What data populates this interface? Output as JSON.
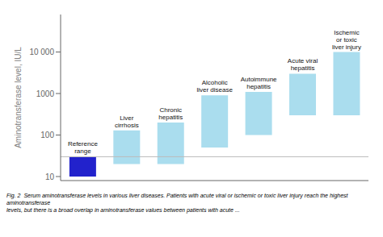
{
  "chart_data": {
    "type": "bar",
    "categories": [
      "Reference\nrange",
      "Liver\ncirrhosis",
      "Chronic\nhepatitis",
      "Alcoholic\nliver disease",
      "Autoimmune\nhepatitis",
      "Acute viral\nhepatitis",
      "Ischemic\nor toxic\nliver injury"
    ],
    "bottoms": [
      10,
      20,
      20,
      50,
      100,
      300,
      300
    ],
    "tops": [
      30,
      130,
      200,
      900,
      1100,
      3000,
      10000
    ],
    "colors": [
      "#2222cc",
      "#aaddee",
      "#aaddee",
      "#aaddee",
      "#aaddee",
      "#aaddee",
      "#aaddee"
    ],
    "ylabel": "Aminotransferase level, IU/L",
    "log": "y",
    "ylim": [
      8,
      80000
    ],
    "yticks": [
      10,
      100,
      1000,
      {
        "value": 10000,
        "label": "10 000"
      }
    ],
    "reference_line": {
      "value": 30,
      "color": "#bbbbbb"
    },
    "tick_labels": "y",
    "grid": false,
    "caption": "Fig. 2  Serum aminotransferase levels in various liver diseases. Patients with acute viral or ischemic or toxic liver injury reach the highest aminotransferase\nlevels, but there is a broad overlap in aminotransferase values between patients with acute ..."
  }
}
